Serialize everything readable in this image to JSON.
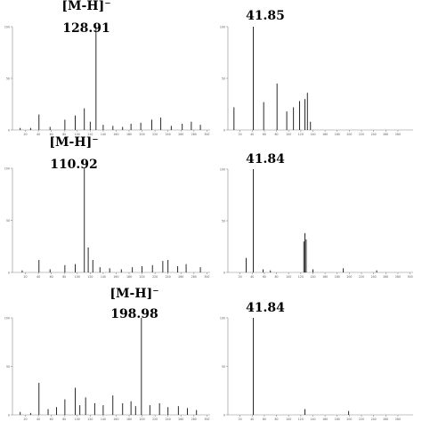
{
  "chart_data": [
    {
      "type": "bar",
      "panel": "top-left",
      "ylim": [
        0,
        100
      ],
      "xlim": [
        0,
        305
      ],
      "x_ticks": [
        20,
        40,
        60,
        80,
        100,
        120,
        140,
        160,
        180,
        200,
        220,
        240,
        260,
        280,
        300
      ],
      "y_ticks": [
        0,
        50,
        100
      ],
      "annotation": "[M-H]⁻",
      "annotation_value": "128.91",
      "peaks": [
        {
          "x": 12,
          "y": 2
        },
        {
          "x": 28,
          "y": 2
        },
        {
          "x": 40.9,
          "y": 15
        },
        {
          "x": 58,
          "y": 3
        },
        {
          "x": 80.9,
          "y": 10
        },
        {
          "x": 96.9,
          "y": 14
        },
        {
          "x": 110.9,
          "y": 21
        },
        {
          "x": 120,
          "y": 8
        },
        {
          "x": 128.91,
          "y": 100
        },
        {
          "x": 140,
          "y": 5
        },
        {
          "x": 155,
          "y": 4
        },
        {
          "x": 170,
          "y": 3
        },
        {
          "x": 182.9,
          "y": 6
        },
        {
          "x": 198,
          "y": 7
        },
        {
          "x": 215,
          "y": 10
        },
        {
          "x": 228.9,
          "y": 12
        },
        {
          "x": 245,
          "y": 4
        },
        {
          "x": 262,
          "y": 6
        },
        {
          "x": 276,
          "y": 8
        },
        {
          "x": 290,
          "y": 5
        }
      ]
    },
    {
      "type": "bar",
      "panel": "top-right",
      "ylim": [
        0,
        100
      ],
      "xlim": [
        0,
        305
      ],
      "x_ticks": [
        20,
        40,
        60,
        80,
        100,
        120,
        140,
        160,
        180,
        200,
        220,
        240,
        260,
        280
      ],
      "y_ticks": [
        0,
        50,
        100
      ],
      "annotation": "",
      "annotation_value": "41.85",
      "peaks": [
        {
          "x": 10,
          "y": 22
        },
        {
          "x": 41.85,
          "y": 100
        },
        {
          "x": 58.9,
          "y": 27
        },
        {
          "x": 80.9,
          "y": 45
        },
        {
          "x": 96.9,
          "y": 18
        },
        {
          "x": 108,
          "y": 22
        },
        {
          "x": 118,
          "y": 28
        },
        {
          "x": 126.9,
          "y": 30
        },
        {
          "x": 130.9,
          "y": 36
        },
        {
          "x": 136,
          "y": 8
        }
      ]
    },
    {
      "type": "bar",
      "panel": "middle-left",
      "ylim": [
        0,
        100
      ],
      "xlim": [
        0,
        305
      ],
      "x_ticks": [
        20,
        40,
        60,
        80,
        100,
        120,
        140,
        160,
        180,
        200,
        220,
        240,
        260,
        280,
        300
      ],
      "y_ticks": [
        0,
        50,
        100
      ],
      "annotation": "[M-H]⁻",
      "annotation_value": "110.92",
      "peaks": [
        {
          "x": 15,
          "y": 2
        },
        {
          "x": 40.9,
          "y": 12
        },
        {
          "x": 58,
          "y": 3
        },
        {
          "x": 80.9,
          "y": 7
        },
        {
          "x": 96.9,
          "y": 8
        },
        {
          "x": 110.92,
          "y": 100
        },
        {
          "x": 116.9,
          "y": 24
        },
        {
          "x": 124,
          "y": 12
        },
        {
          "x": 135,
          "y": 5
        },
        {
          "x": 150,
          "y": 4
        },
        {
          "x": 168,
          "y": 3
        },
        {
          "x": 185,
          "y": 5
        },
        {
          "x": 200,
          "y": 6
        },
        {
          "x": 216,
          "y": 7
        },
        {
          "x": 232,
          "y": 11
        },
        {
          "x": 240,
          "y": 12
        },
        {
          "x": 255,
          "y": 6
        },
        {
          "x": 268,
          "y": 8
        },
        {
          "x": 290,
          "y": 5
        }
      ]
    },
    {
      "type": "bar",
      "panel": "middle-right",
      "ylim": [
        0,
        100
      ],
      "xlim": [
        0,
        305
      ],
      "x_ticks": [
        20,
        40,
        60,
        80,
        100,
        120,
        140,
        160,
        180,
        200,
        220,
        240,
        260,
        280,
        300
      ],
      "y_ticks": [
        0,
        50,
        100
      ],
      "annotation": "",
      "annotation_value": "41.84",
      "peaks": [
        {
          "x": 30,
          "y": 14
        },
        {
          "x": 41.84,
          "y": 100
        },
        {
          "x": 58,
          "y": 3
        },
        {
          "x": 70,
          "y": 2
        },
        {
          "x": 125,
          "y": 30
        },
        {
          "x": 126.9,
          "y": 38
        },
        {
          "x": 128.9,
          "y": 32
        },
        {
          "x": 140,
          "y": 3
        },
        {
          "x": 190,
          "y": 4
        },
        {
          "x": 245,
          "y": 2
        }
      ]
    },
    {
      "type": "bar",
      "panel": "bottom-left",
      "ylim": [
        0,
        100
      ],
      "xlim": [
        0,
        305
      ],
      "x_ticks": [
        20,
        40,
        60,
        80,
        100,
        120,
        140,
        160,
        180,
        200,
        220,
        240,
        260,
        280,
        300
      ],
      "y_ticks": [
        0,
        50,
        100
      ],
      "annotation": "[M-H]⁻",
      "annotation_value": "198.98",
      "peaks": [
        {
          "x": 12,
          "y": 3
        },
        {
          "x": 28,
          "y": 2
        },
        {
          "x": 40.9,
          "y": 33
        },
        {
          "x": 55,
          "y": 6
        },
        {
          "x": 68,
          "y": 8
        },
        {
          "x": 80.9,
          "y": 16
        },
        {
          "x": 96.9,
          "y": 28
        },
        {
          "x": 104,
          "y": 10
        },
        {
          "x": 112.9,
          "y": 18
        },
        {
          "x": 126.9,
          "y": 12
        },
        {
          "x": 140,
          "y": 10
        },
        {
          "x": 154.9,
          "y": 20
        },
        {
          "x": 170,
          "y": 12
        },
        {
          "x": 182.9,
          "y": 14
        },
        {
          "x": 190,
          "y": 9
        },
        {
          "x": 198.98,
          "y": 100
        },
        {
          "x": 212,
          "y": 10
        },
        {
          "x": 226.9,
          "y": 12
        },
        {
          "x": 240,
          "y": 8
        },
        {
          "x": 256,
          "y": 9
        },
        {
          "x": 270,
          "y": 7
        },
        {
          "x": 284,
          "y": 5
        }
      ]
    },
    {
      "type": "bar",
      "panel": "bottom-right",
      "ylim": [
        0,
        100
      ],
      "xlim": [
        0,
        305
      ],
      "x_ticks": [
        20,
        40,
        60,
        80,
        100,
        120,
        140,
        160,
        180,
        200,
        220,
        240,
        260,
        280
      ],
      "y_ticks": [
        0,
        50,
        100
      ],
      "annotation": "",
      "annotation_value": "41.84",
      "peaks": [
        {
          "x": 41.84,
          "y": 100
        },
        {
          "x": 126.9,
          "y": 6
        },
        {
          "x": 198.9,
          "y": 4
        }
      ]
    }
  ],
  "colors": {
    "peak": "#111111",
    "axis": "#888888",
    "tick": "#555555",
    "annotation": "#000000"
  }
}
